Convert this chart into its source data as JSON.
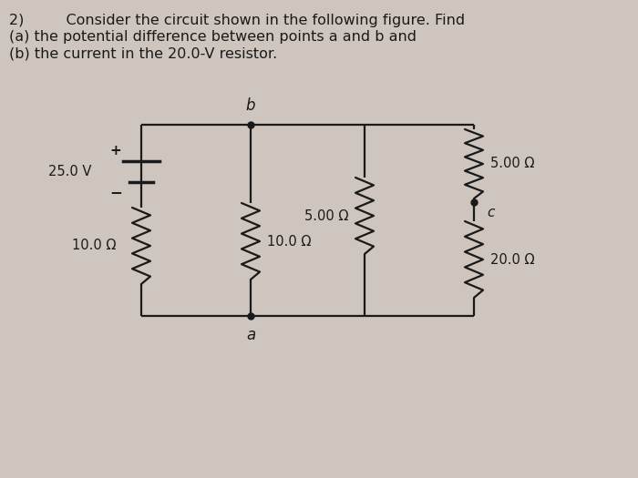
{
  "bg_color": "#cdc5be",
  "text_color": "#1a1a1a",
  "title_line1": "2)         Consider the circuit shown in the following figure. Find",
  "title_line2": "(a) the potential difference between points a and b and",
  "title_line3": "(b) the current in the 20.0-V resistor.",
  "wire_color": "#1a1a1a",
  "font_size_title": 11.5,
  "font_size_label": 10.5,
  "font_size_node": 11
}
